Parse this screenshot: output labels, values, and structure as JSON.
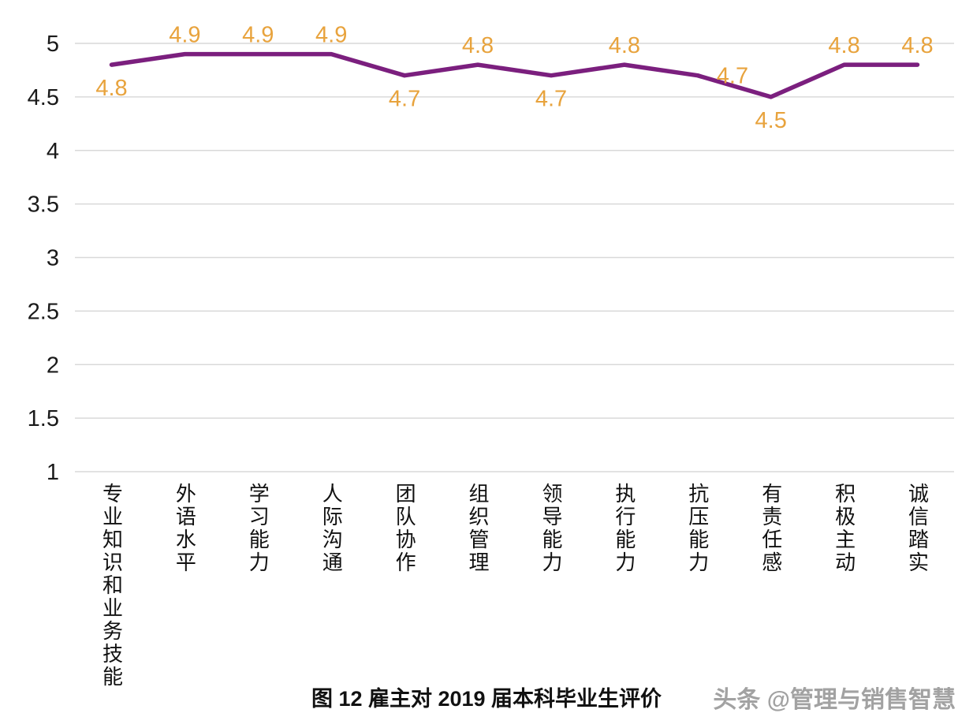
{
  "chart_data": {
    "type": "line",
    "title": "图 12  雇主对 2019 届本科毕业生评价",
    "categories": [
      "专业知识和业务技能",
      "外语水平",
      "学习能力",
      "人际沟通",
      "团队协作",
      "组织管理",
      "领导能力",
      "执行能力",
      "抗压能力",
      "有责任感",
      "积极主动",
      "诚信踏实"
    ],
    "values": [
      4.8,
      4.9,
      4.9,
      4.9,
      4.7,
      4.8,
      4.7,
      4.8,
      4.7,
      4.5,
      4.8,
      4.8
    ],
    "ylim": [
      1,
      5
    ],
    "yticks": [
      1,
      1.5,
      2,
      2.5,
      3,
      3.5,
      4,
      4.5,
      5
    ],
    "grid": true,
    "legend": "none",
    "line_color": "#7B1F7E",
    "label_color": "#E8A33D",
    "grid_color": "#D9D9D9",
    "label_positions": [
      "below",
      "above",
      "above",
      "above",
      "below",
      "above",
      "below",
      "above",
      "right",
      "below",
      "above",
      "above"
    ]
  },
  "watermark": {
    "text": "头条 @管理与销售智慧"
  }
}
